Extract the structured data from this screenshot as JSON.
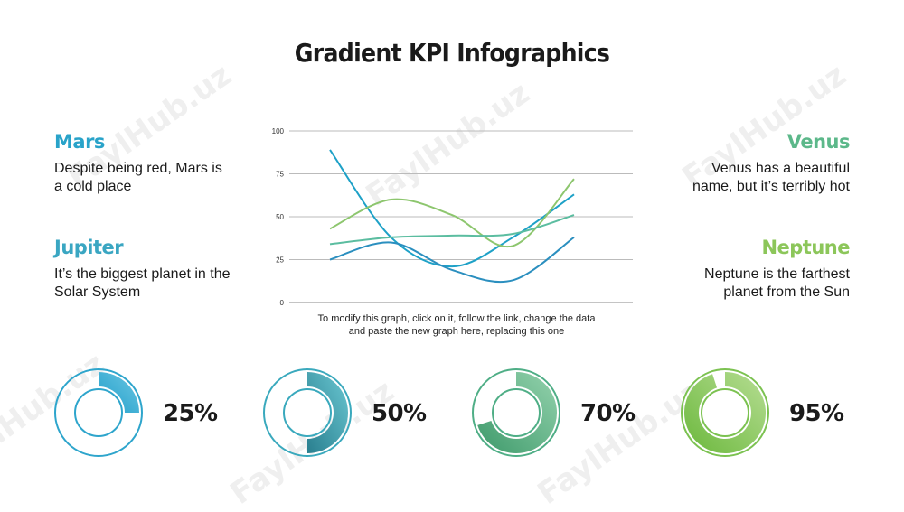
{
  "title": "Gradient KPI Infographics",
  "planets": {
    "mars": {
      "name": "Mars",
      "desc1": "Despite being red, Mars is",
      "desc2": "a cold place",
      "color": "#29a3c9"
    },
    "jupiter": {
      "name": "Jupiter",
      "desc1": "It’s the biggest planet in the",
      "desc2": "Solar System",
      "color": "#3aa6c2"
    },
    "venus": {
      "name": "Venus",
      "desc1": "Venus has a beautiful",
      "desc2": "name, but it’s terribly hot",
      "color": "#5cb88a"
    },
    "neptune": {
      "name": "Neptune",
      "desc1": "Neptune is the farthest",
      "desc2": "planet from the Sun",
      "color": "#8cc65a"
    }
  },
  "chart_note": {
    "line1": "To modify this graph, click on it, follow the link, change the data",
    "line2": "and paste the new graph here, replacing this one"
  },
  "chart_data": {
    "type": "line",
    "ylim": [
      0,
      100
    ],
    "yticks": [
      "0",
      "25",
      "50",
      "75",
      "100"
    ],
    "x": [
      1,
      2,
      3,
      4,
      5
    ],
    "grid": true,
    "series": [
      {
        "color": "#1ea1c7",
        "values": [
          89,
          38,
          21,
          38,
          63
        ]
      },
      {
        "color": "#2b8fbf",
        "values": [
          25,
          35,
          19,
          13,
          38
        ]
      },
      {
        "color": "#8dc66e",
        "values": [
          43,
          60,
          51,
          33,
          72
        ]
      },
      {
        "color": "#5bbda0",
        "values": [
          34,
          38,
          39,
          40,
          51
        ]
      }
    ]
  },
  "kpis": [
    {
      "label": "25%",
      "value": 25,
      "color_a": "#1f9dc9",
      "color_b": "#6cc7e3",
      "ring": "#2ea5cc"
    },
    {
      "label": "50%",
      "value": 50,
      "color_a": "#2a7f8f",
      "color_b": "#6ac7d2",
      "ring": "#3aa9bd"
    },
    {
      "label": "70%",
      "value": 70,
      "color_a": "#3e9a6b",
      "color_b": "#94d2ad",
      "ring": "#4fae86"
    },
    {
      "label": "95%",
      "value": 95,
      "color_a": "#6bb83c",
      "color_b": "#b6dd93",
      "ring": "#7cc251"
    }
  ],
  "watermark": "FaylHub.uz"
}
